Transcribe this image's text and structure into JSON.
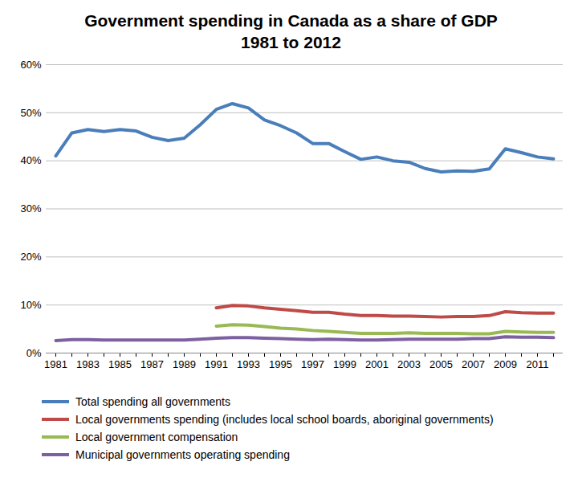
{
  "chart_data": {
    "type": "line",
    "title": "Government spending in Canada as a share of GDP",
    "subtitle": "1981 to 2012",
    "categories": [
      "1981",
      null,
      "1983",
      null,
      "1985",
      null,
      "1987",
      null,
      "1989",
      null,
      "1991",
      null,
      "1993",
      null,
      "1995",
      null,
      "1997",
      null,
      "1999",
      null,
      "2001",
      null,
      "2003",
      null,
      "2005",
      null,
      "2007",
      null,
      "2009",
      null,
      "2011",
      null
    ],
    "series": [
      {
        "name": "Total spending all governments",
        "color": "#4a7ebb",
        "values": [
          41.0,
          45.8,
          46.5,
          46.1,
          46.5,
          46.2,
          44.9,
          44.2,
          44.7,
          47.5,
          50.7,
          51.9,
          51.0,
          48.5,
          47.3,
          45.8,
          43.6,
          43.6,
          41.9,
          40.3,
          40.8,
          40.0,
          39.7,
          38.4,
          37.7,
          37.9,
          37.8,
          38.3,
          42.5,
          41.7,
          40.8,
          40.4
        ]
      },
      {
        "name": "Local governments spending (includes local school boards, aboriginal governments)",
        "color": "#be4b48",
        "values": [
          null,
          null,
          null,
          null,
          null,
          null,
          null,
          null,
          null,
          null,
          9.4,
          9.9,
          9.8,
          9.4,
          9.1,
          8.8,
          8.5,
          8.5,
          8.1,
          7.8,
          7.8,
          7.7,
          7.7,
          7.6,
          7.5,
          7.6,
          7.6,
          7.8,
          8.6,
          8.4,
          8.3,
          8.3
        ]
      },
      {
        "name": "Local government compensation",
        "color": "#98b954",
        "values": [
          null,
          null,
          null,
          null,
          null,
          null,
          null,
          null,
          null,
          null,
          5.6,
          5.9,
          5.8,
          5.5,
          5.2,
          5.0,
          4.7,
          4.5,
          4.3,
          4.1,
          4.1,
          4.1,
          4.2,
          4.1,
          4.1,
          4.1,
          4.0,
          4.0,
          4.5,
          4.4,
          4.3,
          4.3
        ]
      },
      {
        "name": "Municipal governments operating spending",
        "color": "#7d60a0",
        "values": [
          2.6,
          2.8,
          2.8,
          2.7,
          2.7,
          2.7,
          2.7,
          2.7,
          2.7,
          2.9,
          3.1,
          3.2,
          3.2,
          3.1,
          3.0,
          2.9,
          2.8,
          2.9,
          2.8,
          2.7,
          2.7,
          2.8,
          2.9,
          2.9,
          2.9,
          2.9,
          3.0,
          3.0,
          3.4,
          3.3,
          3.3,
          3.2
        ]
      }
    ],
    "ylim": [
      0,
      60
    ],
    "yticks": [
      {
        "value": 0,
        "label": "0%"
      },
      {
        "value": 10,
        "label": "10%"
      },
      {
        "value": 20,
        "label": "20%"
      },
      {
        "value": 30,
        "label": "30%"
      },
      {
        "value": 40,
        "label": "40%"
      },
      {
        "value": 50,
        "label": "50%"
      },
      {
        "value": 60,
        "label": "60%"
      }
    ],
    "grid": true,
    "legend": "bottom"
  }
}
